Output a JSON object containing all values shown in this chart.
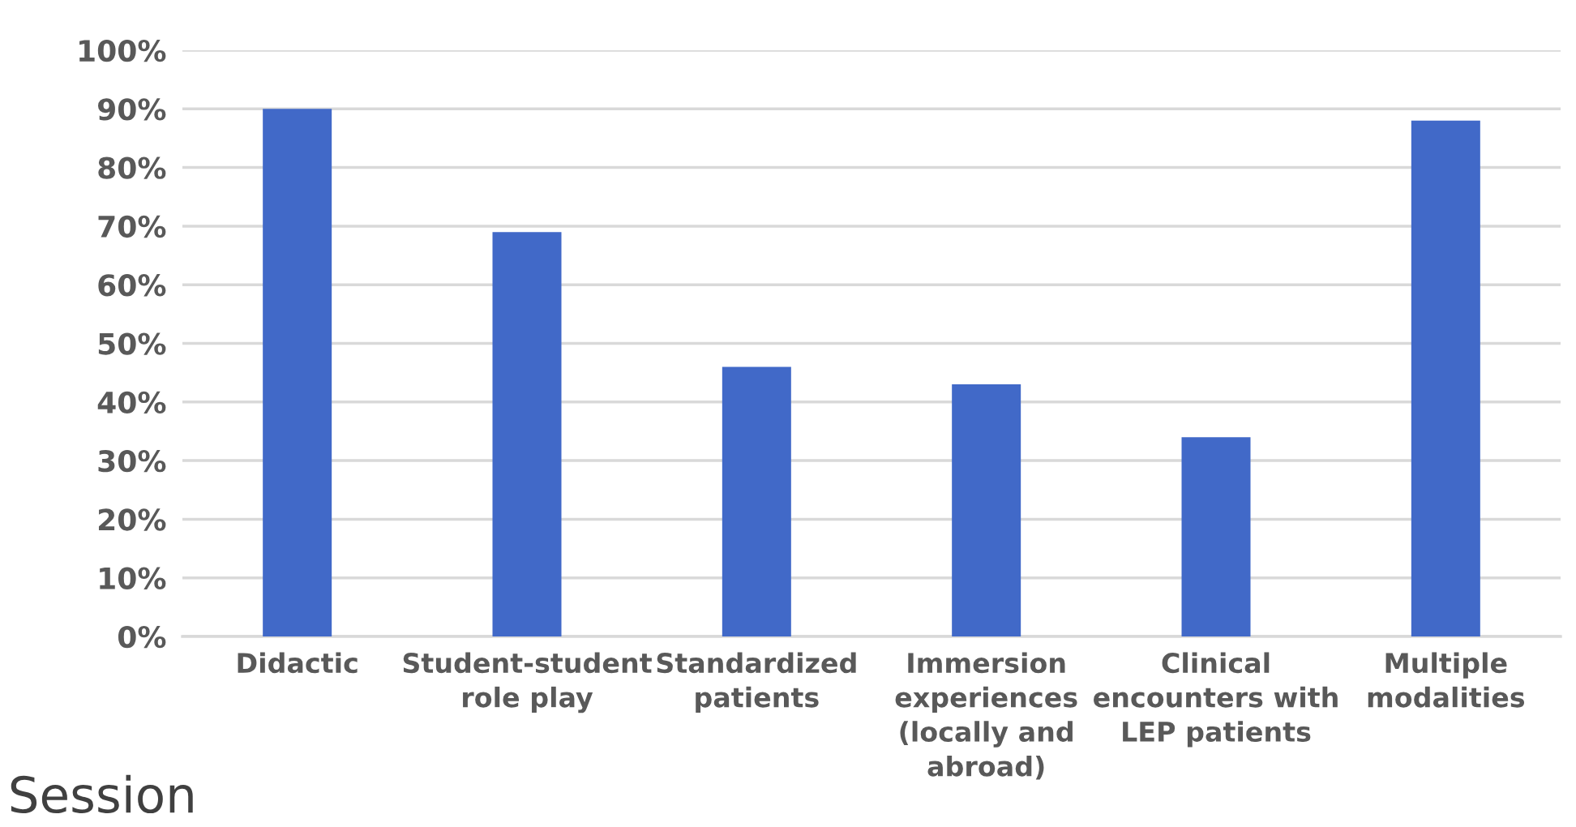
{
  "chart_data": {
    "type": "bar",
    "categories": [
      "Didactic",
      "Student-student\nrole play",
      "Standardized\npatients",
      "Immersion\nexperiences\n(locally and\nabroad)",
      "Clinical\nencounters with\nLEP patients",
      "Multiple\nmodalities"
    ],
    "values": [
      90,
      69,
      46,
      43,
      34,
      88
    ],
    "color": "#4169c8",
    "ylim": [
      0,
      100
    ],
    "yticks": [
      {
        "value": 0,
        "label": "0%"
      },
      {
        "value": 10,
        "label": "10%"
      },
      {
        "value": 20,
        "label": "20%"
      },
      {
        "value": 30,
        "label": "30%"
      },
      {
        "value": 40,
        "label": "40%"
      },
      {
        "value": 50,
        "label": "50%"
      },
      {
        "value": 60,
        "label": "60%"
      },
      {
        "value": 70,
        "label": "70%"
      },
      {
        "value": 80,
        "label": "80%"
      },
      {
        "value": 90,
        "label": "90%"
      },
      {
        "value": 100,
        "label": "100%"
      }
    ],
    "grid": "y",
    "annotations": [
      "Session"
    ]
  }
}
